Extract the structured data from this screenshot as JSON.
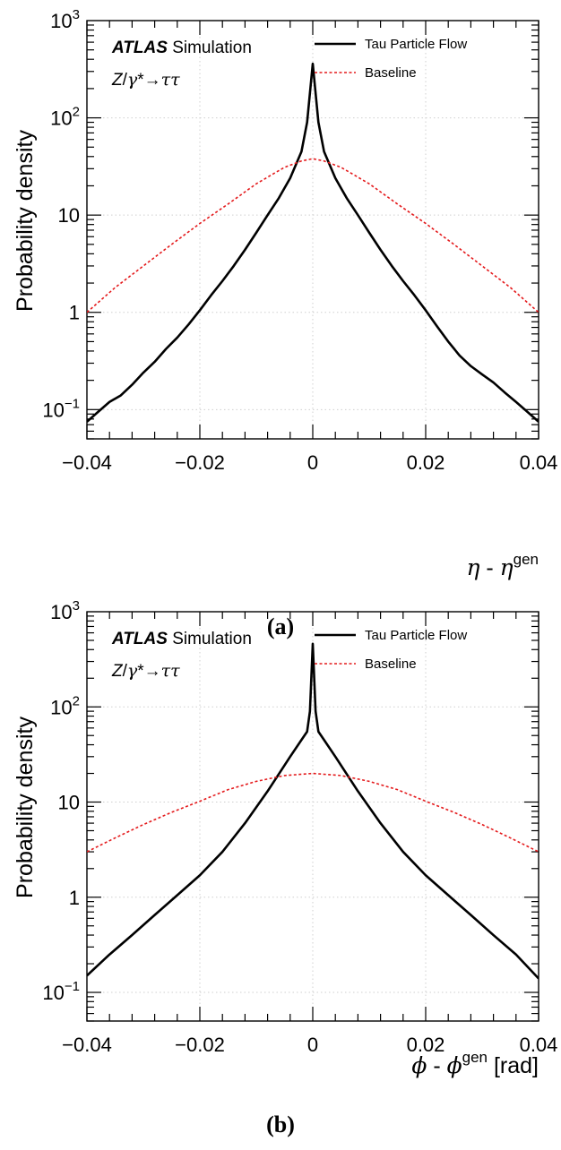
{
  "chart_data": [
    {
      "type": "line",
      "panel_label": "(a)",
      "ylabel": "Probability density",
      "xlabel": {
        "symbol": "η",
        "sep": " - ",
        "sup": "gen",
        "unit": ""
      },
      "xlim": [
        -0.04,
        0.04
      ],
      "ylim": [
        0.05,
        1000
      ],
      "yscale": "log",
      "grid": true,
      "legend_position": "top-right",
      "xticks": [
        {
          "value": -0.04,
          "label": "−0.04"
        },
        {
          "value": -0.02,
          "label": "−0.02"
        },
        {
          "value": 0,
          "label": "0"
        },
        {
          "value": 0.02,
          "label": "0.02"
        },
        {
          "value": 0.04,
          "label": "0.04"
        }
      ],
      "yticks": [
        {
          "value": 0.1,
          "base": "10",
          "exp": "−1"
        },
        {
          "value": 1,
          "base": "1",
          "exp": ""
        },
        {
          "value": 10,
          "base": "10",
          "exp": ""
        },
        {
          "value": 100,
          "base": "10",
          "exp": "2"
        },
        {
          "value": 1000,
          "base": "10",
          "exp": "3"
        }
      ],
      "annotations": {
        "atlas": "ATLAS",
        "simulation": "Simulation",
        "process": {
          "z": "Z",
          "slash": "/",
          "gamma": "γ",
          "star": "*",
          "arrow": "→",
          "taus": "ττ"
        }
      },
      "series": [
        {
          "name": "Tau Particle Flow",
          "color": "#000000",
          "style": "solid",
          "x": [
            -0.04,
            -0.038,
            -0.036,
            -0.034,
            -0.032,
            -0.03,
            -0.028,
            -0.026,
            -0.024,
            -0.022,
            -0.02,
            -0.018,
            -0.016,
            -0.014,
            -0.012,
            -0.01,
            -0.008,
            -0.006,
            -0.004,
            -0.002,
            -0.001,
            0,
            0.001,
            0.002,
            0.004,
            0.006,
            0.008,
            0.01,
            0.012,
            0.014,
            0.016,
            0.018,
            0.02,
            0.022,
            0.024,
            0.026,
            0.028,
            0.03,
            0.032,
            0.034,
            0.036,
            0.038,
            0.04
          ],
          "values": [
            0.075,
            0.095,
            0.12,
            0.14,
            0.18,
            0.24,
            0.31,
            0.42,
            0.55,
            0.75,
            1.05,
            1.5,
            2.1,
            3.0,
            4.4,
            6.6,
            10,
            15,
            24,
            45,
            90,
            360,
            90,
            45,
            24,
            15,
            10,
            6.6,
            4.4,
            3.0,
            2.1,
            1.5,
            1.05,
            0.72,
            0.5,
            0.36,
            0.28,
            0.23,
            0.19,
            0.15,
            0.12,
            0.095,
            0.075
          ]
        },
        {
          "name": "Baseline",
          "color": "#e41a1c",
          "style": "dashed",
          "x": [
            -0.04,
            -0.035,
            -0.03,
            -0.025,
            -0.02,
            -0.015,
            -0.01,
            -0.005,
            -0.002,
            0,
            0.002,
            0.005,
            0.01,
            0.015,
            0.02,
            0.025,
            0.03,
            0.035,
            0.04
          ],
          "values": [
            1.0,
            1.8,
            3.0,
            5.0,
            8.2,
            13,
            21,
            31,
            36,
            38,
            36,
            31,
            21,
            13,
            8.2,
            5.0,
            3.0,
            1.8,
            1.0
          ]
        }
      ]
    },
    {
      "type": "line",
      "panel_label": "(b)",
      "ylabel": "Probability density",
      "xlabel": {
        "symbol": "ϕ",
        "sep": " - ",
        "sup": "gen",
        "unit": " [rad]"
      },
      "xlim": [
        -0.04,
        0.04
      ],
      "ylim": [
        0.05,
        1000
      ],
      "yscale": "log",
      "grid": true,
      "legend_position": "top-right",
      "xticks": [
        {
          "value": -0.04,
          "label": "−0.04"
        },
        {
          "value": -0.02,
          "label": "−0.02"
        },
        {
          "value": 0,
          "label": "0"
        },
        {
          "value": 0.02,
          "label": "0.02"
        },
        {
          "value": 0.04,
          "label": "0.04"
        }
      ],
      "yticks": [
        {
          "value": 0.1,
          "base": "10",
          "exp": "−1"
        },
        {
          "value": 1,
          "base": "1",
          "exp": ""
        },
        {
          "value": 10,
          "base": "10",
          "exp": ""
        },
        {
          "value": 100,
          "base": "10",
          "exp": "2"
        },
        {
          "value": 1000,
          "base": "10",
          "exp": "3"
        }
      ],
      "annotations": {
        "atlas": "ATLAS",
        "simulation": "Simulation",
        "process": {
          "z": "Z",
          "slash": "/",
          "gamma": "γ",
          "star": "*",
          "arrow": "→",
          "taus": "ττ"
        }
      },
      "series": [
        {
          "name": "Tau Particle Flow",
          "color": "#000000",
          "style": "solid",
          "x": [
            -0.04,
            -0.036,
            -0.032,
            -0.028,
            -0.024,
            -0.02,
            -0.016,
            -0.012,
            -0.008,
            -0.004,
            -0.002,
            -0.001,
            -0.0005,
            0,
            0.0005,
            0.001,
            0.002,
            0.004,
            0.008,
            0.012,
            0.016,
            0.02,
            0.024,
            0.028,
            0.032,
            0.036,
            0.04
          ],
          "values": [
            0.15,
            0.25,
            0.4,
            0.65,
            1.05,
            1.7,
            3.0,
            6.0,
            13,
            30,
            45,
            55,
            90,
            460,
            90,
            55,
            45,
            30,
            13,
            6.0,
            3.0,
            1.7,
            1.05,
            0.65,
            0.4,
            0.25,
            0.14
          ]
        },
        {
          "name": "Baseline",
          "color": "#e41a1c",
          "style": "dashed",
          "x": [
            -0.04,
            -0.035,
            -0.03,
            -0.025,
            -0.02,
            -0.015,
            -0.01,
            -0.005,
            0,
            0.005,
            0.01,
            0.015,
            0.02,
            0.025,
            0.03,
            0.035,
            0.04
          ],
          "values": [
            3.0,
            4.2,
            5.8,
            7.8,
            10.2,
            13.5,
            16.5,
            19,
            20,
            19,
            16.5,
            13.5,
            10.2,
            7.8,
            5.8,
            4.2,
            3.0
          ]
        }
      ]
    }
  ]
}
